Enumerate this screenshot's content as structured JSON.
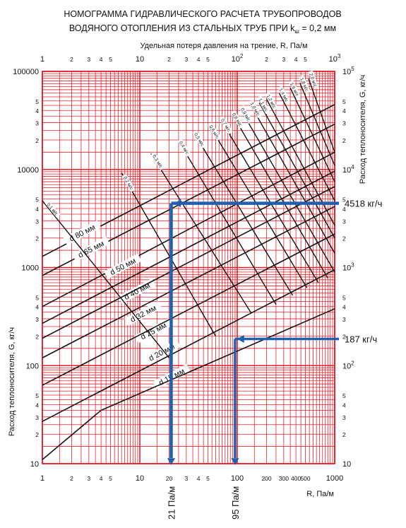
{
  "chart_data": {
    "type": "line",
    "title_line1": "НОМОГРАММА ГИДРАВЛИЧЕСКОГО РАСЧЕТА ТРУБОПРОВОДОВ",
    "title_line2_prefix": "ВОДЯНОГО ОТОПЛЕНИЯ ИЗ СТАЛЬНЫХ ТРУБ ПРИ k",
    "title_line2_sub": "ш",
    "title_line2_suffix": " = 0,2 мм",
    "xlabel_top": "Удельная потеря давления на трение, R, Па/м",
    "xlabel_bottom": "R, Па/м",
    "ylabel_left": "Расход теплоносителя, G, кг/ч",
    "ylabel_right": "Расход теплоносителя, G, кг/ч",
    "x_scale": "log",
    "y_scale": "log",
    "xlim": [
      1,
      1000
    ],
    "ylim": [
      10,
      100000
    ],
    "grid": true,
    "grid_color": "#e8202a",
    "line_color": "#111111",
    "marker_color": "#1f5fae",
    "x_ticks_bottom": [
      {
        "v": 1,
        "t": "1",
        "major": true
      },
      {
        "v": 2,
        "t": "2"
      },
      {
        "v": 3,
        "t": "3"
      },
      {
        "v": 4,
        "t": "4"
      },
      {
        "v": 5,
        "t": "5"
      },
      {
        "v": 10,
        "t": "10",
        "major": true
      },
      {
        "v": 20,
        "t": "20"
      },
      {
        "v": 30,
        "t": "3"
      },
      {
        "v": 40,
        "t": "4"
      },
      {
        "v": 50,
        "t": "5"
      },
      {
        "v": 100,
        "t": "100",
        "major": true
      },
      {
        "v": 200,
        "t": "200"
      },
      {
        "v": 300,
        "t": "300"
      },
      {
        "v": 400,
        "t": "400"
      },
      {
        "v": 500,
        "t": "500"
      },
      {
        "v": 1000,
        "t": "1000",
        "major": true
      }
    ],
    "x_ticks_top": [
      {
        "v": 1,
        "t": "1",
        "major": true
      },
      {
        "v": 2,
        "t": "2"
      },
      {
        "v": 3,
        "t": "3"
      },
      {
        "v": 4,
        "t": "4"
      },
      {
        "v": 5,
        "t": "5"
      },
      {
        "v": 10,
        "t": "10",
        "major": true
      },
      {
        "v": 20,
        "t": "2"
      },
      {
        "v": 30,
        "t": "3"
      },
      {
        "v": 40,
        "t": "4"
      },
      {
        "v": 50,
        "t": "5"
      },
      {
        "v": 100,
        "t": "10",
        "sup": "2",
        "major": true
      },
      {
        "v": 200,
        "t": "2"
      },
      {
        "v": 300,
        "t": "3"
      },
      {
        "v": 400,
        "t": "4"
      },
      {
        "v": 500,
        "t": "5"
      },
      {
        "v": 1000,
        "t": "10",
        "sup": "3",
        "major": true
      }
    ],
    "y_ticks_left": [
      {
        "v": 10,
        "t": "10",
        "major": true
      },
      {
        "v": 20,
        "t": "2"
      },
      {
        "v": 30,
        "t": "3"
      },
      {
        "v": 40,
        "t": "4"
      },
      {
        "v": 50,
        "t": "5"
      },
      {
        "v": 100,
        "t": "100",
        "major": true
      },
      {
        "v": 200,
        "t": "2"
      },
      {
        "v": 300,
        "t": "3"
      },
      {
        "v": 400,
        "t": "4"
      },
      {
        "v": 500,
        "t": "5"
      },
      {
        "v": 1000,
        "t": "1000",
        "major": true
      },
      {
        "v": 2000,
        "t": "2"
      },
      {
        "v": 3000,
        "t": "3"
      },
      {
        "v": 4000,
        "t": "4"
      },
      {
        "v": 5000,
        "t": "5"
      },
      {
        "v": 10000,
        "t": "10000",
        "major": true
      },
      {
        "v": 20000,
        "t": "2"
      },
      {
        "v": 30000,
        "t": "3"
      },
      {
        "v": 40000,
        "t": "4"
      },
      {
        "v": 50000,
        "t": "5"
      },
      {
        "v": 100000,
        "t": "100000",
        "major": true
      }
    ],
    "y_ticks_right": [
      {
        "v": 10,
        "t": "10",
        "major": true
      },
      {
        "v": 20,
        "t": "2"
      },
      {
        "v": 30,
        "t": "3"
      },
      {
        "v": 40,
        "t": "4"
      },
      {
        "v": 50,
        "t": "5"
      },
      {
        "v": 100,
        "t": "10",
        "sup": "2",
        "major": true
      },
      {
        "v": 200,
        "t": "2"
      },
      {
        "v": 300,
        "t": "3"
      },
      {
        "v": 400,
        "t": "4"
      },
      {
        "v": 500,
        "t": "5"
      },
      {
        "v": 1000,
        "t": "10",
        "sup": "3",
        "major": true
      },
      {
        "v": 2000,
        "t": "2"
      },
      {
        "v": 3000,
        "t": "3"
      },
      {
        "v": 4000,
        "t": "4"
      },
      {
        "v": 5000,
        "t": "5"
      },
      {
        "v": 10000,
        "t": "10",
        "sup": "4",
        "major": true
      },
      {
        "v": 20000,
        "t": "2"
      },
      {
        "v": 30000,
        "t": "3"
      },
      {
        "v": 40000,
        "t": "4"
      },
      {
        "v": 50000,
        "t": "5"
      },
      {
        "v": 100000,
        "t": "10",
        "sup": "5",
        "major": true
      }
    ],
    "diameter_lines": [
      {
        "label": "d 80 мм",
        "points": [
          [
            1,
            1300
          ],
          [
            1000,
            46000
          ]
        ],
        "label_at": [
          2.6,
          2200
        ]
      },
      {
        "label": "d 65 мм",
        "points": [
          [
            1,
            830
          ],
          [
            1000,
            29000
          ]
        ],
        "label_at": [
          3.2,
          1500
        ]
      },
      {
        "label": "d 50 мм",
        "points": [
          [
            1,
            400
          ],
          [
            1000,
            15000
          ]
        ],
        "label_at": [
          6.8,
          1000
        ]
      },
      {
        "label": "d 40 мм",
        "points": [
          [
            1,
            270
          ],
          [
            1000,
            9600
          ]
        ],
        "label_at": [
          9.5,
          560
        ]
      },
      {
        "label": "d 32 мм",
        "points": [
          [
            1,
            190
          ],
          [
            1000,
            6700
          ]
        ],
        "label_at": [
          11,
          330
        ]
      },
      {
        "label": "d 25 мм",
        "points": [
          [
            1,
            120
          ],
          [
            1000,
            4200
          ]
        ],
        "label_at": [
          14,
          220
        ]
      },
      {
        "label": "d 20 мм",
        "points": [
          [
            1,
            63
          ],
          [
            1000,
            2200
          ]
        ],
        "label_at": [
          17,
          133
        ]
      },
      {
        "label": "d 15 мм",
        "points": [
          [
            1,
            27
          ],
          [
            1000,
            950
          ]
        ],
        "label_at": [
          21.5,
          75
        ]
      },
      {
        "label": "",
        "points": [
          [
            1,
            11
          ],
          [
            4,
            35
          ],
          [
            1000,
            380
          ]
        ],
        "label_at": null
      }
    ],
    "velocity_lines": [
      {
        "label": "0,1 м/с",
        "start": [
          1,
          4800
        ],
        "end": [
          20,
          120
        ],
        "label_at": [
          1.25,
          3900
        ]
      },
      {
        "label": "0,2 м/с",
        "start": [
          6.5,
          9200
        ],
        "end": [
          60,
          200
        ],
        "label_at": [
          7.5,
          7200
        ]
      },
      {
        "label": "0,3 м/с",
        "start": [
          13,
          14500
        ],
        "end": [
          140,
          340
        ],
        "label_at": [
          15,
          12000
        ]
      },
      {
        "label": "0,4 м/с",
        "start": [
          25,
          19500
        ],
        "end": [
          250,
          420
        ],
        "label_at": [
          28,
          16500
        ]
      },
      {
        "label": "0,5 м/с",
        "start": [
          36,
          23500
        ],
        "end": [
          370,
          520
        ],
        "label_at": [
          40,
          20000
        ]
      },
      {
        "label": "0,6 м/с",
        "start": [
          52,
          28000
        ],
        "end": [
          520,
          620
        ],
        "label_at": [
          57,
          24000
        ]
      },
      {
        "label": "0,7 м/с",
        "start": [
          68,
          32000
        ],
        "end": [
          680,
          700
        ],
        "label_at": [
          75,
          28000
        ]
      },
      {
        "label": "0,8 м/с",
        "start": [
          90,
          36000
        ],
        "end": [
          850,
          780
        ],
        "label_at": [
          98,
          32000
        ]
      },
      {
        "label": "0,9 м/с",
        "start": [
          110,
          40000
        ],
        "end": [
          1000,
          900
        ],
        "label_at": [
          120,
          36000
        ]
      },
      {
        "label": "1,0 м/с",
        "start": [
          140,
          44000
        ],
        "end": [
          1000,
          1400
        ],
        "label_at": [
          150,
          41000
        ]
      },
      {
        "label": "1,1 м/с",
        "start": [
          168,
          48000
        ],
        "end": [
          1000,
          2000
        ],
        "label_at": [
          182,
          45000
        ]
      },
      {
        "label": "1,2 м/с",
        "start": [
          200,
          52000
        ],
        "end": [
          1000,
          2700
        ],
        "label_at": [
          220,
          49000
        ]
      },
      {
        "label": "1,4 м/с",
        "start": [
          270,
          60000
        ],
        "end": [
          1000,
          4800
        ],
        "label_at": [
          295,
          57000
        ]
      },
      {
        "label": "1,6 м/с",
        "start": [
          350,
          68000
        ],
        "end": [
          1000,
          7500
        ],
        "label_at": [
          380,
          65000
        ]
      },
      {
        "label": "1,8 м/с",
        "start": [
          440,
          76000
        ],
        "end": [
          1000,
          11000
        ],
        "label_at": [
          480,
          73000
        ]
      },
      {
        "label": "2,0 м/с",
        "start": [
          540,
          84000
        ],
        "end": [
          1000,
          15000
        ],
        "label_at": [
          590,
          81000
        ]
      }
    ],
    "annotations": [
      {
        "label_G": "4518 кг/ч",
        "label_R": "21 Па/м",
        "G": 4518,
        "R": 21
      },
      {
        "label_G": "187 кг/ч",
        "label_R": "95 Па/м",
        "G": 187,
        "R": 95
      }
    ]
  }
}
